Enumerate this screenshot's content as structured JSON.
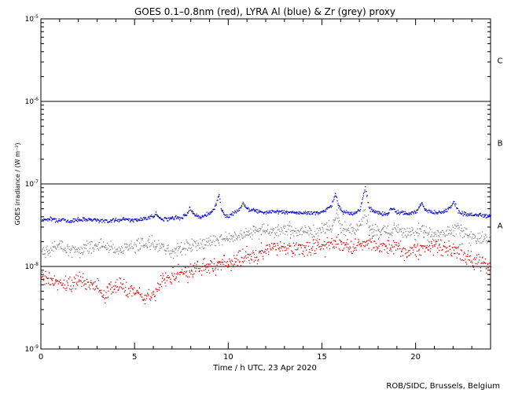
{
  "chart_data": {
    "type": "scatter",
    "title": "GOES 0.1–0.8nm (red), LYRA Al (blue) & Zr (grey) proxy",
    "xlabel": "Time / h UTC, 23 Apr 2020",
    "ylabel": "GOES irradiance / (W m⁻²)",
    "xlim": [
      0,
      24
    ],
    "ylim": [
      1e-09,
      1e-05
    ],
    "yscale": "log",
    "x_ticks": [
      0,
      5,
      10,
      15,
      20
    ],
    "x_tick_labels": [
      "0",
      "5",
      "10",
      "15",
      "20"
    ],
    "y_ticks": [
      1e-09,
      1e-08,
      1e-07,
      1e-06,
      1e-05
    ],
    "y_tick_labels": [
      {
        "base": "10",
        "exp": "-9"
      },
      {
        "base": "10",
        "exp": "-8"
      },
      {
        "base": "10",
        "exp": "-7"
      },
      {
        "base": "10",
        "exp": "-6"
      },
      {
        "base": "10",
        "exp": "-5"
      }
    ],
    "flare_class_lines": [
      1e-08,
      1e-07,
      1e-06
    ],
    "flare_classes": [
      {
        "label": "A",
        "y": 3.16e-08
      },
      {
        "label": "B",
        "y": 3.16e-07
      },
      {
        "label": "C",
        "y": 3.16e-06
      }
    ],
    "grid": false,
    "series": [
      {
        "color": "#0000cc",
        "x": [
          0.0,
          0.5,
          1.0,
          1.5,
          2.0,
          2.5,
          3.0,
          3.5,
          4.0,
          4.5,
          5.0,
          5.5,
          6.0,
          6.1,
          6.3,
          6.5,
          7.0,
          7.5,
          7.8,
          7.9,
          8.2,
          8.5,
          9.0,
          9.3,
          9.5,
          9.6,
          9.8,
          10.0,
          10.5,
          10.8,
          11.0,
          11.5,
          12.0,
          12.5,
          13.0,
          13.5,
          14.0,
          14.5,
          15.0,
          15.5,
          15.7,
          15.8,
          16.0,
          16.3,
          16.5,
          17.0,
          17.2,
          17.3,
          17.5,
          18.0,
          18.5,
          18.7,
          19.0,
          19.5,
          20.0,
          20.3,
          20.5,
          21.0,
          21.5,
          21.8,
          22.0,
          22.3,
          22.5,
          23.0,
          23.5,
          24.0
        ],
        "y": [
          3.7e-08,
          3.8e-08,
          3.7e-08,
          3.6e-08,
          3.75e-08,
          3.8e-08,
          3.7e-08,
          3.6e-08,
          3.7e-08,
          3.8e-08,
          3.7e-08,
          3.8e-08,
          4.1e-08,
          4.5e-08,
          3.9e-08,
          3.8e-08,
          3.9e-08,
          4e-08,
          4.4e-08,
          5.2e-08,
          4.3e-08,
          4e-08,
          4.5e-08,
          5.5e-08,
          7.6e-08,
          5e-08,
          4.2e-08,
          4.1e-08,
          4.8e-08,
          5.9e-08,
          5e-08,
          4.8e-08,
          4.6e-08,
          4.7e-08,
          4.6e-08,
          4.5e-08,
          4.5e-08,
          4.5e-08,
          4.6e-08,
          5.5e-08,
          8e-08,
          6e-08,
          4.8e-08,
          4.5e-08,
          4.4e-08,
          4.8e-08,
          7.5e-08,
          9.2e-08,
          5e-08,
          4.5e-08,
          4.4e-08,
          5.2e-08,
          4.6e-08,
          4.4e-08,
          4.6e-08,
          6e-08,
          4.8e-08,
          4.5e-08,
          4.6e-08,
          5.2e-08,
          6.2e-08,
          4.6e-08,
          4.4e-08,
          4.3e-08,
          4.2e-08,
          4.1e-08
        ],
        "scatter": 0.035
      },
      {
        "color": "#888888",
        "x": [
          0.0,
          0.5,
          1.0,
          1.5,
          2.0,
          2.5,
          3.0,
          3.5,
          4.0,
          4.5,
          5.0,
          5.5,
          6.0,
          6.5,
          7.0,
          7.5,
          8.0,
          8.5,
          9.0,
          9.5,
          10.0,
          10.5,
          11.0,
          11.5,
          12.0,
          12.5,
          13.0,
          13.5,
          14.0,
          14.5,
          15.0,
          15.5,
          15.8,
          16.0,
          16.5,
          17.0,
          17.3,
          17.5,
          18.0,
          18.5,
          19.0,
          19.5,
          20.0,
          20.3,
          20.5,
          21.0,
          21.5,
          22.0,
          22.2,
          22.5,
          23.0,
          23.5,
          24.0
        ],
        "y": [
          1.5e-08,
          1.7e-08,
          1.8e-08,
          1.6e-08,
          1.6e-08,
          1.7e-08,
          1.9e-08,
          1.8e-08,
          1.6e-08,
          1.7e-08,
          1.8e-08,
          1.9e-08,
          1.9e-08,
          1.7e-08,
          1.6e-08,
          1.7e-08,
          1.8e-08,
          1.9e-08,
          2e-08,
          2.2e-08,
          2.3e-08,
          2.3e-08,
          2.6e-08,
          2.7e-08,
          2.8e-08,
          2.7e-08,
          2.8e-08,
          2.8e-08,
          2.7e-08,
          2.6e-08,
          2.9e-08,
          3e-08,
          4.5e-08,
          3e-08,
          2.8e-08,
          3e-08,
          4.8e-08,
          3e-08,
          2.7e-08,
          2.6e-08,
          2.8e-08,
          2.5e-08,
          2.6e-08,
          3e-08,
          2.6e-08,
          2.4e-08,
          2.5e-08,
          2.7e-08,
          3.2e-08,
          2.5e-08,
          2.3e-08,
          2.2e-08,
          2.1e-08
        ],
        "scatter": 0.12
      },
      {
        "color": "#e00000",
        "x": [
          0.0,
          0.5,
          1.0,
          1.5,
          2.0,
          2.5,
          3.0,
          3.3,
          3.5,
          4.0,
          4.5,
          5.0,
          5.5,
          6.0,
          6.5,
          7.0,
          7.5,
          8.0,
          8.5,
          9.0,
          9.5,
          10.0,
          10.5,
          11.0,
          11.5,
          12.0,
          12.5,
          13.0,
          13.5,
          14.0,
          14.5,
          15.0,
          15.5,
          15.8,
          16.0,
          16.5,
          17.0,
          17.3,
          17.5,
          18.0,
          18.5,
          19.0,
          19.5,
          20.0,
          20.5,
          21.0,
          21.5,
          22.0,
          22.5,
          23.0,
          23.5,
          24.0
        ],
        "y": [
          8e-09,
          7e-09,
          6.5e-09,
          6e-09,
          7e-09,
          6.5e-09,
          5.5e-09,
          4.5e-09,
          5e-09,
          6e-09,
          5.5e-09,
          5.2e-09,
          4e-09,
          4.5e-09,
          7e-09,
          7.5e-09,
          8.5e-09,
          9e-09,
          1e-08,
          1.05e-08,
          1.1e-08,
          1.15e-08,
          1.25e-08,
          1.35e-08,
          1.4e-08,
          1.6e-08,
          1.7e-08,
          1.75e-08,
          1.7e-08,
          1.75e-08,
          1.7e-08,
          1.8e-08,
          1.9e-08,
          2e-08,
          1.9e-08,
          1.85e-08,
          1.9e-08,
          2e-08,
          1.95e-08,
          1.8e-08,
          1.8e-08,
          1.7e-08,
          1.6e-08,
          1.6e-08,
          1.7e-08,
          1.75e-08,
          1.7e-08,
          1.6e-08,
          1.4e-08,
          1.25e-08,
          1.1e-08,
          1e-08
        ],
        "scatter": 0.15
      }
    ]
  },
  "credit": "ROB/SIDC, Brussels, Belgium"
}
